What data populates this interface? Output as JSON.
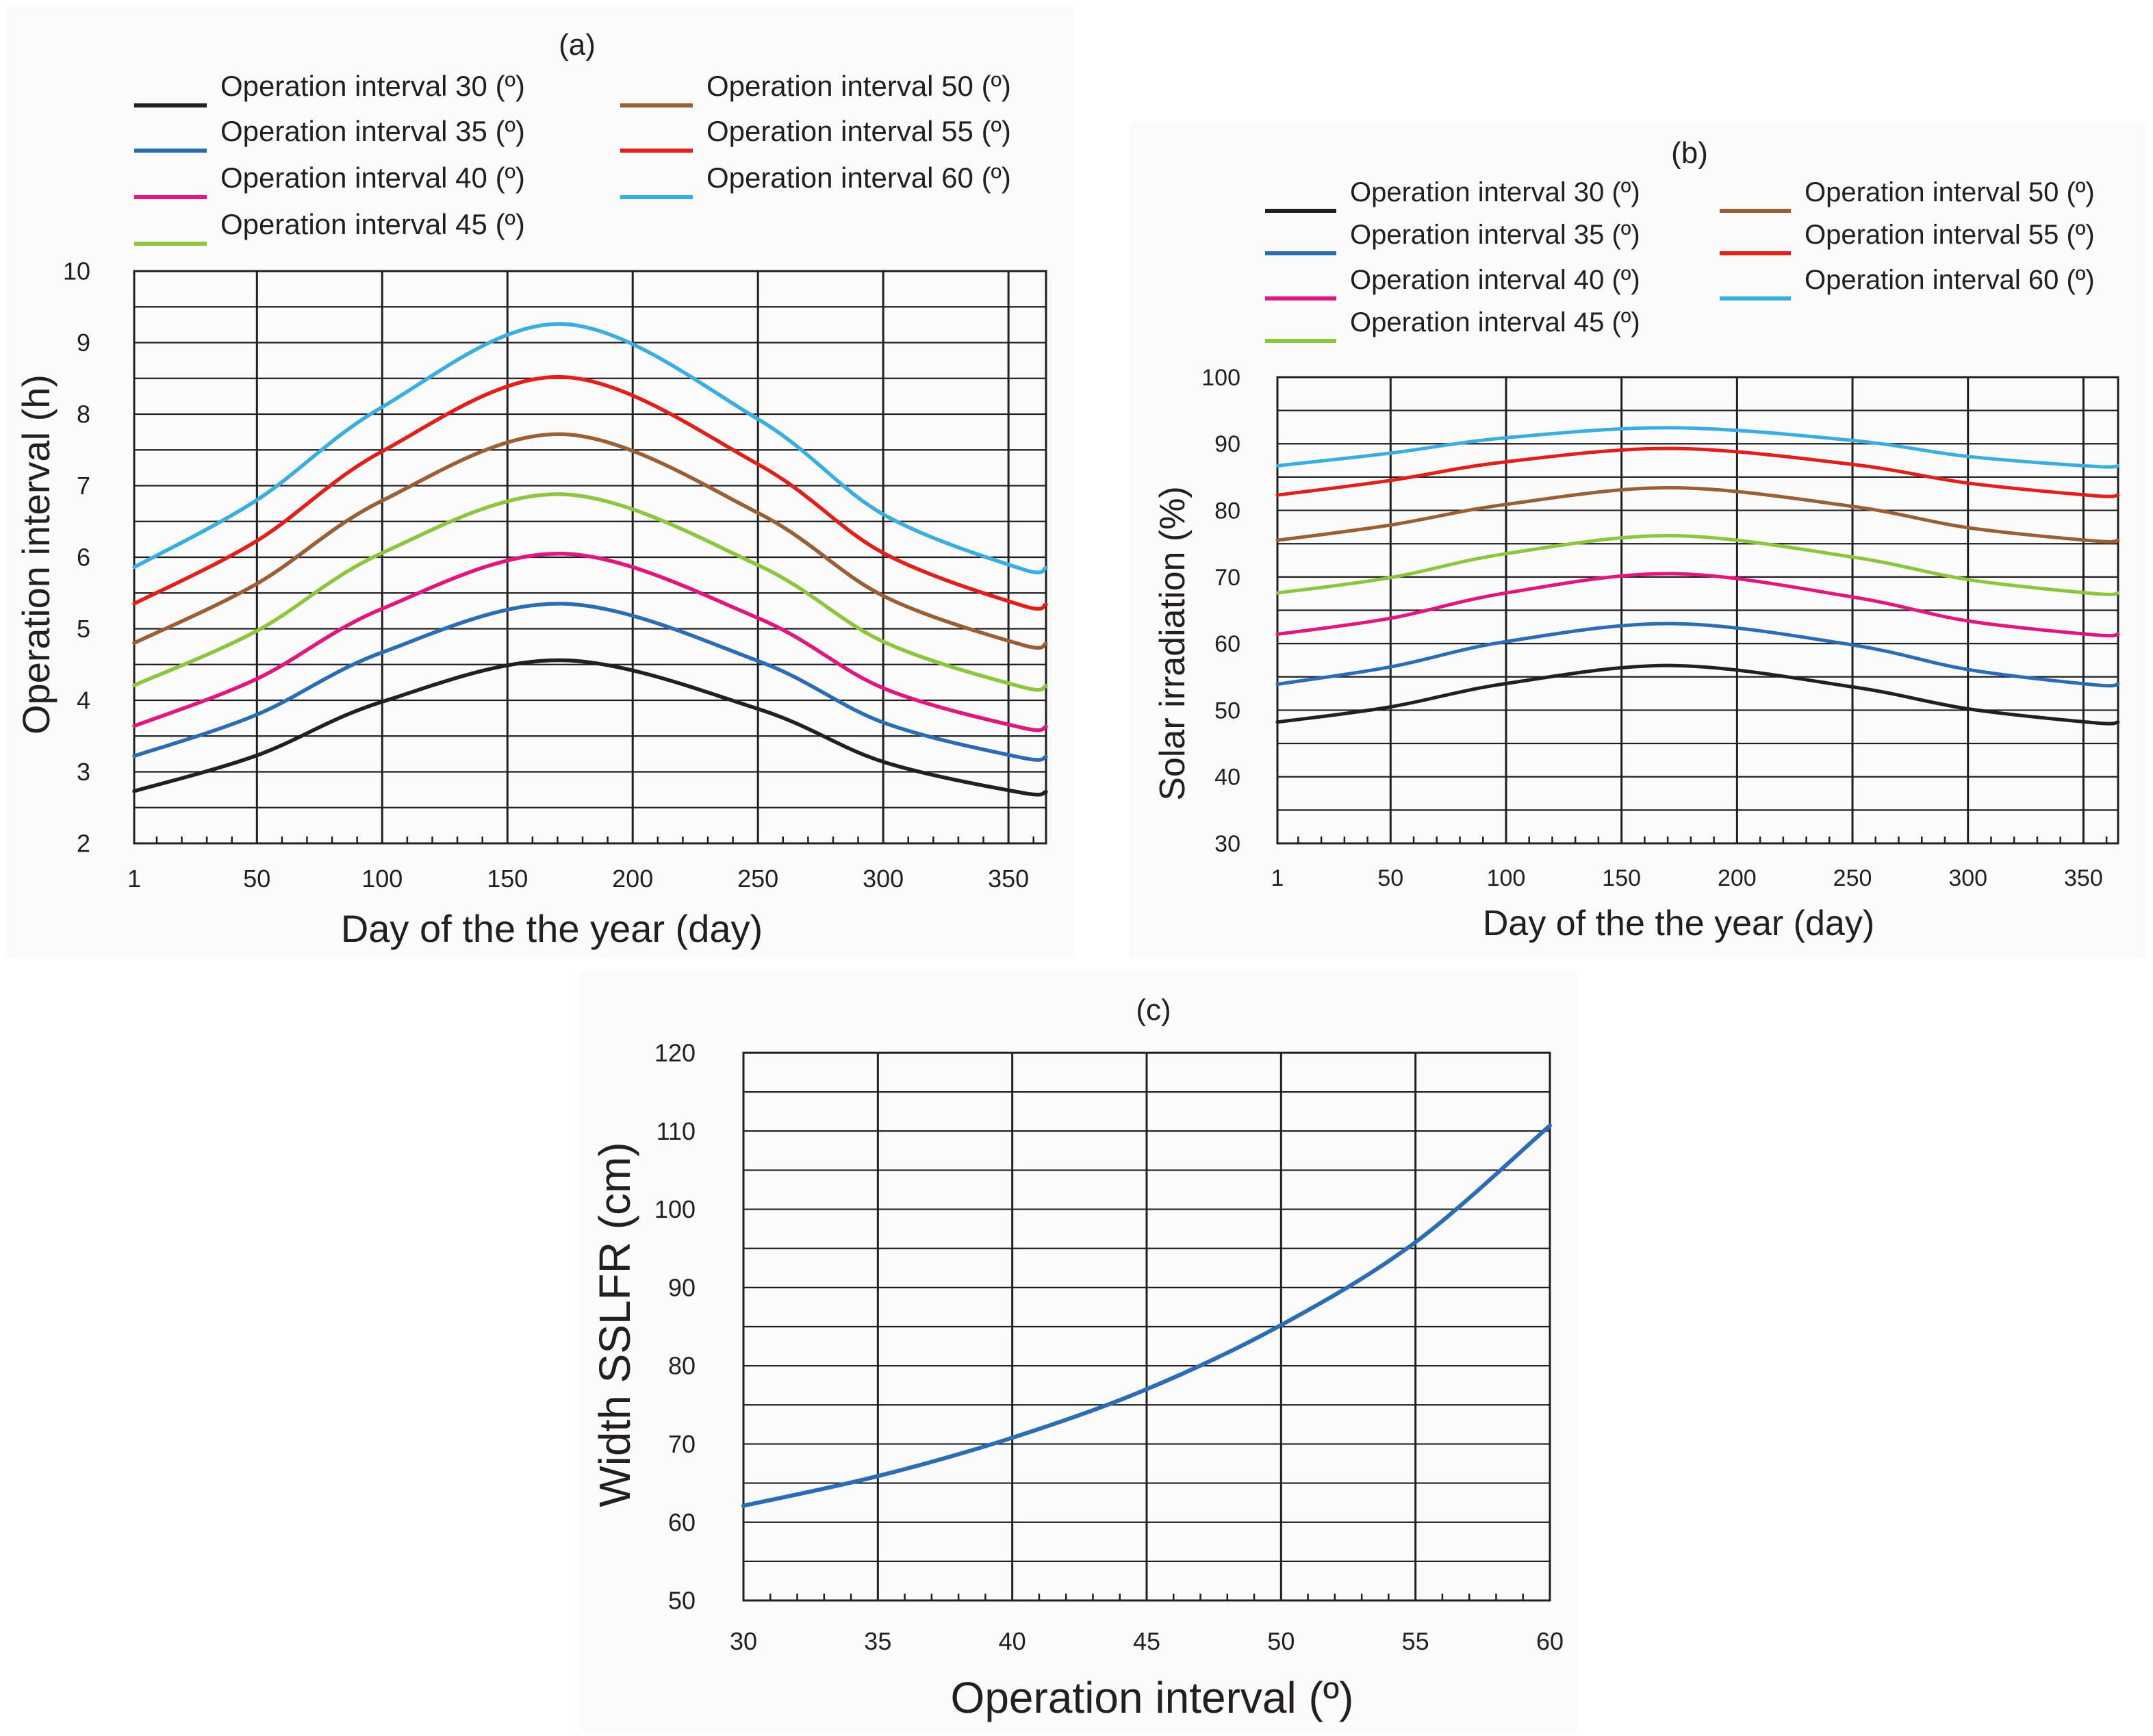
{
  "figure": {
    "labels": [
      "(a)",
      "(b)",
      "(c)"
    ]
  },
  "colors": {
    "ink": "#231f20",
    "series": [
      "#231f20",
      "#2a6db5",
      "#e0177f",
      "#8cc63e",
      "#9a5f34",
      "#e0201b",
      "#3aaee1"
    ]
  },
  "chart_data": [
    {
      "panel": "(a)",
      "type": "line",
      "title": "",
      "xlabel": "Day of the the year (day)",
      "ylabel": "Operation interval (h)",
      "xlim": [
        1,
        365
      ],
      "ylim": [
        2,
        10
      ],
      "xticks": [
        1,
        50,
        100,
        150,
        200,
        250,
        300,
        350
      ],
      "yticks": [
        2,
        3,
        4,
        5,
        6,
        7,
        8,
        9,
        10
      ],
      "grid": true,
      "legend_position": "top",
      "series": [
        {
          "name": "Operation interval 30 (º)",
          "x": [
            1,
            50,
            100,
            172,
            250,
            300,
            355,
            365
          ],
          "values": [
            2.73,
            3.23,
            3.98,
            4.56,
            3.88,
            3.14,
            2.71,
            2.72
          ]
        },
        {
          "name": "Operation interval 35 (º)",
          "x": [
            1,
            50,
            100,
            172,
            250,
            300,
            355,
            365
          ],
          "values": [
            3.22,
            3.8,
            4.67,
            5.35,
            4.55,
            3.69,
            3.2,
            3.21
          ]
        },
        {
          "name": "Operation interval 40 (º)",
          "x": [
            1,
            50,
            100,
            172,
            250,
            300,
            355,
            365
          ],
          "values": [
            3.64,
            4.3,
            5.28,
            6.05,
            5.15,
            4.17,
            3.62,
            3.63
          ]
        },
        {
          "name": "Operation interval 45 (º)",
          "x": [
            1,
            50,
            100,
            172,
            250,
            300,
            355,
            365
          ],
          "values": [
            4.21,
            4.97,
            6.06,
            6.88,
            5.89,
            4.82,
            4.19,
            4.2
          ]
        },
        {
          "name": "Operation interval 50 (º)",
          "x": [
            1,
            50,
            100,
            172,
            250,
            300,
            355,
            365
          ],
          "values": [
            4.8,
            5.63,
            6.79,
            7.72,
            6.62,
            5.46,
            4.78,
            4.79
          ]
        },
        {
          "name": "Operation interval 55 (º)",
          "x": [
            1,
            50,
            100,
            172,
            250,
            300,
            355,
            365
          ],
          "values": [
            5.35,
            6.23,
            7.48,
            8.52,
            7.3,
            6.06,
            5.33,
            5.34
          ]
        },
        {
          "name": "Operation interval 60 (º)",
          "x": [
            1,
            50,
            100,
            172,
            250,
            300,
            355,
            365
          ],
          "values": [
            5.86,
            6.8,
            8.1,
            9.26,
            7.93,
            6.6,
            5.84,
            5.85
          ]
        }
      ]
    },
    {
      "panel": "(b)",
      "type": "line",
      "title": "",
      "xlabel": "Day of the the year (day)",
      "ylabel": "Solar irradiation (%)",
      "xlim": [
        1,
        365
      ],
      "ylim": [
        30,
        100
      ],
      "xticks": [
        1,
        50,
        100,
        150,
        200,
        250,
        300,
        350
      ],
      "yticks": [
        30,
        40,
        50,
        60,
        70,
        80,
        90,
        100
      ],
      "grid": true,
      "legend_position": "top",
      "series": [
        {
          "name": "Operation interval 30 (º)",
          "x": [
            1,
            50,
            100,
            172,
            250,
            300,
            355,
            365
          ],
          "values": [
            48.2,
            50.5,
            54.0,
            56.7,
            53.5,
            50.2,
            48.1,
            48.2
          ]
        },
        {
          "name": "Operation interval 35 (º)",
          "x": [
            1,
            50,
            100,
            172,
            250,
            300,
            355,
            365
          ],
          "values": [
            53.9,
            56.5,
            60.3,
            63.0,
            59.8,
            56.1,
            53.8,
            53.9
          ]
        },
        {
          "name": "Operation interval 40 (º)",
          "x": [
            1,
            50,
            100,
            172,
            250,
            300,
            355,
            365
          ],
          "values": [
            61.4,
            63.8,
            67.6,
            70.5,
            67.0,
            63.4,
            61.3,
            61.4
          ]
        },
        {
          "name": "Operation interval 45 (º)",
          "x": [
            1,
            50,
            100,
            172,
            250,
            300,
            355,
            365
          ],
          "values": [
            67.6,
            69.9,
            73.5,
            76.2,
            73.0,
            69.6,
            67.5,
            67.6
          ]
        },
        {
          "name": "Operation interval 50 (º)",
          "x": [
            1,
            50,
            100,
            172,
            250,
            300,
            355,
            365
          ],
          "values": [
            75.5,
            77.8,
            80.9,
            83.4,
            80.6,
            77.4,
            75.4,
            75.5
          ]
        },
        {
          "name": "Operation interval 55 (º)",
          "x": [
            1,
            50,
            100,
            172,
            250,
            300,
            355,
            365
          ],
          "values": [
            82.3,
            84.5,
            87.3,
            89.3,
            86.9,
            84.1,
            82.2,
            82.3
          ]
        },
        {
          "name": "Operation interval 60 (º)",
          "x": [
            1,
            50,
            100,
            172,
            250,
            300,
            355,
            365
          ],
          "values": [
            86.7,
            88.6,
            90.9,
            92.4,
            90.5,
            88.1,
            86.6,
            86.7
          ]
        }
      ]
    },
    {
      "panel": "(c)",
      "type": "line",
      "title": "",
      "xlabel": "Operation interval (º)",
      "ylabel": "Width SSLFR (cm)",
      "xlim": [
        30,
        60
      ],
      "ylim": [
        50,
        120
      ],
      "xticks": [
        30,
        35,
        40,
        45,
        50,
        55,
        60
      ],
      "yticks": [
        50,
        60,
        70,
        80,
        90,
        100,
        110,
        120
      ],
      "grid": true,
      "legend_position": "none",
      "series": [
        {
          "name": "Width SSLFR",
          "x": [
            30,
            35,
            40,
            45,
            50,
            55,
            60
          ],
          "values": [
            62.1,
            65.9,
            70.8,
            77.0,
            85.2,
            95.8,
            110.7
          ]
        }
      ]
    }
  ]
}
